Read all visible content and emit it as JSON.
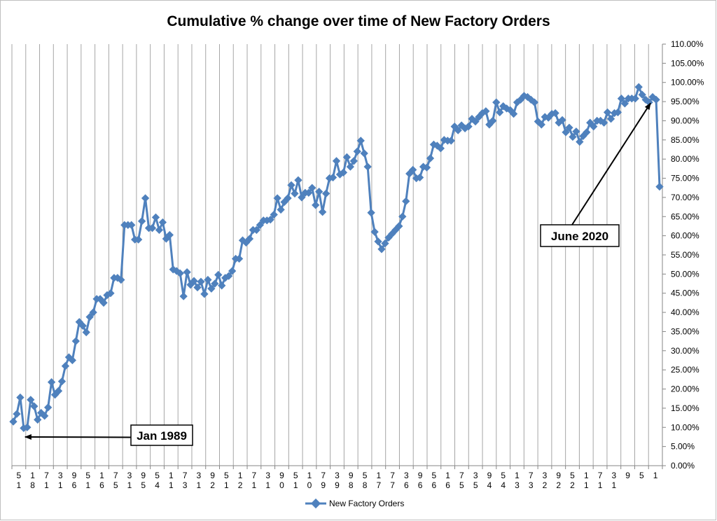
{
  "chart_data": {
    "type": "line",
    "title": "Cumulative % change over time of New Factory Orders",
    "xlabel": "",
    "ylabel": "",
    "ylim": [
      0,
      110
    ],
    "y_tick_labels": [
      "0.00%",
      "5.00%",
      "10.00%",
      "15.00%",
      "20.00%",
      "25.00%",
      "30.00%",
      "35.00%",
      "40.00%",
      "45.00%",
      "50.00%",
      "55.00%",
      "60.00%",
      "65.00%",
      "70.00%",
      "75.00%",
      "80.00%",
      "85.00%",
      "90.00%",
      "95.00%",
      "100.00%",
      "105.00%",
      "110.00%"
    ],
    "x_tick_labels": [
      "5 1",
      "1 8",
      "7 1",
      "3 1",
      "9 6",
      "5 1",
      "1 6",
      "7 5",
      "3 1",
      "9 5",
      "5 4",
      "1 1",
      "7 3",
      "3 1",
      "9 2",
      "5 1",
      "1 2",
      "7 1",
      "3 1",
      "9 0",
      "5 1",
      "1 0",
      "7 9",
      "3 9",
      "9 8",
      "5 8",
      "1 7",
      "7 7",
      "3 6",
      "9 6",
      "5 6",
      "1 6",
      "7 5",
      "3 5",
      "9 4",
      "5 4",
      "1 3",
      "7 3",
      "3 2",
      "9 2",
      "5 2",
      "1 1",
      "7 1",
      "3 1",
      "9",
      "5",
      "1"
    ],
    "grid": "vertical",
    "legend": "bottom",
    "series": [
      {
        "name": "New Factory Orders",
        "color": "#4f81bd",
        "values": [
          11.5,
          13.5,
          17.8,
          9.8,
          10,
          17.2,
          15.5,
          12,
          13.8,
          13,
          15.2,
          21.8,
          18.5,
          19.5,
          22,
          26,
          28.3,
          27.5,
          32.5,
          37.5,
          36.5,
          34.8,
          38.8,
          40,
          43.5,
          43.5,
          42.5,
          44.5,
          45,
          49,
          49,
          48.5,
          62.8,
          62.8,
          62.8,
          59,
          59,
          63.8,
          69.8,
          62,
          62,
          64.8,
          61.5,
          63.5,
          59.2,
          60.2,
          51.2,
          50.8,
          50.2,
          44.2,
          50.5,
          47.2,
          48.2,
          46.5,
          48,
          44.8,
          48.5,
          46.2,
          47.5,
          49.8,
          47,
          49,
          49.5,
          50.8,
          54,
          54,
          58.8,
          58.2,
          59.2,
          61.5,
          61.5,
          62.8,
          64,
          64,
          64.2,
          65.5,
          69.8,
          66.8,
          68.8,
          69.8,
          73.2,
          71,
          74.5,
          70,
          71.2,
          71.2,
          72.5,
          68,
          71.5,
          66.2,
          71,
          75,
          75.2,
          79.5,
          76,
          76.5,
          80.5,
          78,
          79.5,
          82,
          84.8,
          81.5,
          78,
          66,
          61,
          58.5,
          56.5,
          58,
          59.5,
          60.5,
          61.5,
          62.5,
          65,
          69,
          76.2,
          77.2,
          75,
          75.2,
          78,
          77.8,
          80.2,
          83.8,
          83.5,
          82.8,
          85,
          84.8,
          84.8,
          88.5,
          87.5,
          88.8,
          88,
          88.5,
          90.5,
          89.8,
          91,
          92,
          92.5,
          89,
          90,
          94.8,
          92.2,
          93.8,
          93.2,
          92.8,
          91.8,
          94.8,
          95.5,
          96.5,
          96.2,
          95.5,
          94.8,
          89.8,
          89,
          91,
          90.8,
          91.8,
          92,
          89.5,
          90.2,
          87,
          88.2,
          85.8,
          87.2,
          84.5,
          86,
          87,
          89.5,
          88.5,
          90,
          90,
          89.5,
          92.2,
          90.5,
          92,
          92.2,
          95.8,
          94.5,
          95.8,
          95.8,
          95.8,
          98.8,
          96.8,
          95.5,
          94.8,
          96.2,
          95.5,
          72.8
        ]
      }
    ],
    "annotations": [
      {
        "text": "Jan 1989",
        "target_index": 3
      },
      {
        "text": "June 2020",
        "target_index": 185
      }
    ]
  }
}
